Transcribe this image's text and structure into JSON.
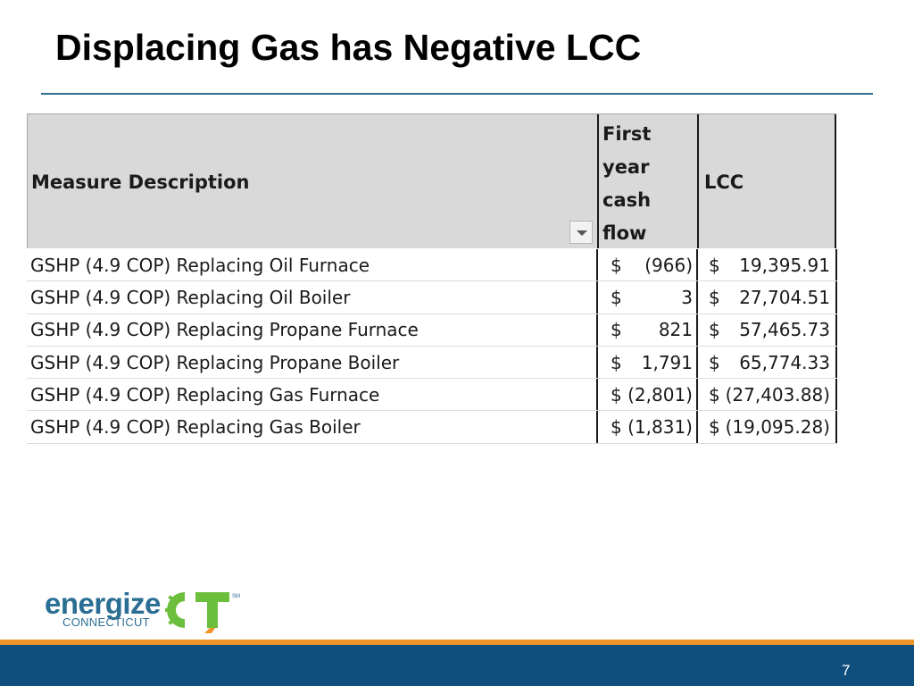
{
  "slide": {
    "title": "Displacing Gas has Negative LCC",
    "page_number": "7"
  },
  "table": {
    "headers": {
      "description": "Measure Description",
      "first_year_cash_flow": [
        "First",
        "year",
        "cash",
        "flow"
      ],
      "lcc": "LCC"
    },
    "rows": [
      {
        "description": "GSHP (4.9 COP) Replacing Oil Furnace",
        "cash_symbol": "$",
        "cash": "(966)",
        "lcc_symbol": "$",
        "lcc": "19,395.91"
      },
      {
        "description": "GSHP (4.9 COP) Replacing Oil Boiler",
        "cash_symbol": "$",
        "cash": "3",
        "lcc_symbol": "$",
        "lcc": "27,704.51"
      },
      {
        "description": "GSHP (4.9 COP) Replacing Propane Furnace",
        "cash_symbol": "$",
        "cash": "821",
        "lcc_symbol": "$",
        "lcc": "57,465.73"
      },
      {
        "description": "GSHP (4.9 COP) Replacing Propane Boiler",
        "cash_symbol": "$",
        "cash": "1,791",
        "lcc_symbol": "$",
        "lcc": "65,774.33"
      },
      {
        "description": "GSHP (4.9 COP) Replacing Gas Furnace",
        "cash_symbol": "$",
        "cash": "(2,801)",
        "lcc_symbol": "$",
        "lcc": "(27,403.88)"
      },
      {
        "description": "GSHP (4.9 COP) Replacing Gas Boiler",
        "cash_symbol": "$",
        "cash": "(1,831)",
        "lcc_symbol": "$",
        "lcc": "(19,095.28)"
      }
    ]
  },
  "logo": {
    "word": "energize",
    "sub": "CONNECTICUT",
    "mark": "CT",
    "trademark": "SM",
    "icon": "energize-ct-logo-icon"
  },
  "colors": {
    "title_rule": "#2d6f8e",
    "header_fill": "#d9d9d9",
    "logo_blue": "#2a6e93",
    "logo_green": "#6cbf3c",
    "footer_blue": "#0f4f7d",
    "footer_orange": "#f0932b"
  }
}
